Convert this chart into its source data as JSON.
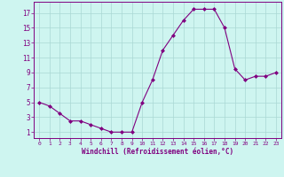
{
  "x": [
    0,
    1,
    2,
    3,
    4,
    5,
    6,
    7,
    8,
    9,
    10,
    11,
    12,
    13,
    14,
    15,
    16,
    17,
    18,
    19,
    20,
    21,
    22,
    23
  ],
  "y": [
    5,
    4.5,
    3.5,
    2.5,
    2.5,
    2,
    1.5,
    1,
    1,
    1,
    5,
    8,
    12,
    14,
    16,
    17.5,
    17.5,
    17.5,
    15,
    9.5,
    8,
    8.5,
    8.5,
    9
  ],
  "xlabel": "Windchill (Refroidissement éolien,°C)",
  "background_color": "#cef5f0",
  "grid_color": "#aad8d4",
  "line_color": "#800080",
  "marker_color": "#800080",
  "yticks": [
    1,
    3,
    5,
    7,
    9,
    11,
    13,
    15,
    17
  ],
  "xticks": [
    0,
    1,
    2,
    3,
    4,
    5,
    6,
    7,
    8,
    9,
    10,
    11,
    12,
    13,
    14,
    15,
    16,
    17,
    18,
    19,
    20,
    21,
    22,
    23
  ],
  "ylim": [
    0.2,
    18.5
  ],
  "xlim": [
    -0.5,
    23.5
  ]
}
